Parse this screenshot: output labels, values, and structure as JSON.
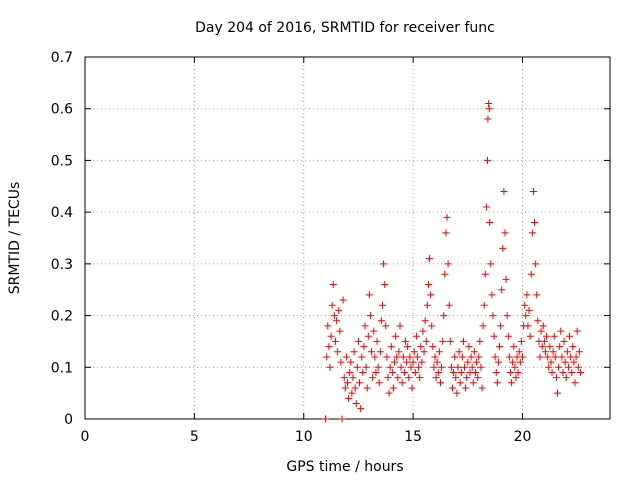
{
  "chart_data": {
    "type": "scatter",
    "title": "Day 204 of 2016, SRMTID for receiver func",
    "xlabel": "GPS time / hours",
    "ylabel": "SRMTID / TECUs",
    "xlim": [
      0,
      24
    ],
    "ylim": [
      0,
      0.7
    ],
    "xticks": [
      0,
      5,
      10,
      15,
      20
    ],
    "xtick_labels": [
      "0",
      "5",
      "10",
      "15",
      "20"
    ],
    "yticks": [
      0,
      0.1,
      0.2,
      0.3,
      0.4,
      0.5,
      0.6,
      0.7
    ],
    "ytick_labels": [
      "0",
      "0.1",
      "0.2",
      "0.3",
      "0.4",
      "0.5",
      "0.6",
      "0.7"
    ],
    "grid": true,
    "marker": "+",
    "color": "#ff0000",
    "series": [
      {
        "name": "SRMTID",
        "points": [
          [
            11.0,
            0.0
          ],
          [
            11.0,
            0.0
          ],
          [
            11.05,
            0.12
          ],
          [
            11.1,
            0.18
          ],
          [
            11.15,
            0.14
          ],
          [
            11.2,
            0.1
          ],
          [
            11.25,
            0.16
          ],
          [
            11.3,
            0.22
          ],
          [
            11.35,
            0.26
          ],
          [
            11.4,
            0.2
          ],
          [
            11.45,
            0.15
          ],
          [
            11.5,
            0.19
          ],
          [
            11.55,
            0.13
          ],
          [
            11.6,
            0.21
          ],
          [
            11.65,
            0.17
          ],
          [
            11.7,
            0.11
          ],
          [
            11.75,
            0.0
          ],
          [
            11.8,
            0.23
          ],
          [
            11.85,
            0.08
          ],
          [
            11.9,
            0.06
          ],
          [
            11.95,
            0.12
          ],
          [
            12.0,
            0.07
          ],
          [
            12.05,
            0.04
          ],
          [
            12.1,
            0.09
          ],
          [
            12.15,
            0.11
          ],
          [
            12.2,
            0.05
          ],
          [
            12.25,
            0.08
          ],
          [
            12.3,
            0.13
          ],
          [
            12.35,
            0.06
          ],
          [
            12.4,
            0.03
          ],
          [
            12.45,
            0.1
          ],
          [
            12.5,
            0.15
          ],
          [
            12.55,
            0.07
          ],
          [
            12.6,
            0.02
          ],
          [
            12.65,
            0.12
          ],
          [
            12.7,
            0.09
          ],
          [
            12.75,
            0.14
          ],
          [
            12.8,
            0.18
          ],
          [
            12.85,
            0.1
          ],
          [
            12.9,
            0.06
          ],
          [
            12.95,
            0.16
          ],
          [
            13.0,
            0.24
          ],
          [
            13.05,
            0.2
          ],
          [
            13.1,
            0.13
          ],
          [
            13.15,
            0.08
          ],
          [
            13.2,
            0.17
          ],
          [
            13.25,
            0.12
          ],
          [
            13.3,
            0.09
          ],
          [
            13.35,
            0.15
          ],
          [
            13.4,
            0.1
          ],
          [
            13.45,
            0.07
          ],
          [
            13.5,
            0.13
          ],
          [
            13.55,
            0.19
          ],
          [
            13.6,
            0.22
          ],
          [
            13.65,
            0.3
          ],
          [
            13.7,
            0.26
          ],
          [
            13.75,
            0.18
          ],
          [
            13.8,
            0.12
          ],
          [
            13.85,
            0.08
          ],
          [
            13.9,
            0.05
          ],
          [
            13.95,
            0.1
          ],
          [
            14.0,
            0.14
          ],
          [
            14.05,
            0.09
          ],
          [
            14.1,
            0.06
          ],
          [
            14.15,
            0.11
          ],
          [
            14.2,
            0.16
          ],
          [
            14.25,
            0.12
          ],
          [
            14.3,
            0.08
          ],
          [
            14.35,
            0.13
          ],
          [
            14.4,
            0.18
          ],
          [
            14.45,
            0.1
          ],
          [
            14.5,
            0.07
          ],
          [
            14.55,
            0.12
          ],
          [
            14.6,
            0.09
          ],
          [
            14.65,
            0.15
          ],
          [
            14.7,
            0.11
          ],
          [
            14.75,
            0.14
          ],
          [
            14.8,
            0.08
          ],
          [
            14.85,
            0.12
          ],
          [
            14.9,
            0.1
          ],
          [
            14.95,
            0.06
          ],
          [
            15.0,
            0.11
          ],
          [
            15.05,
            0.13
          ],
          [
            15.1,
            0.09
          ],
          [
            15.15,
            0.16
          ],
          [
            15.2,
            0.12
          ],
          [
            15.25,
            0.1
          ],
          [
            15.3,
            0.08
          ],
          [
            15.35,
            0.14
          ],
          [
            15.4,
            0.11
          ],
          [
            15.45,
            0.17
          ],
          [
            15.5,
            0.13
          ],
          [
            15.55,
            0.19
          ],
          [
            15.6,
            0.15
          ],
          [
            15.65,
            0.22
          ],
          [
            15.7,
            0.26
          ],
          [
            15.75,
            0.31
          ],
          [
            15.8,
            0.24
          ],
          [
            15.85,
            0.18
          ],
          [
            15.9,
            0.14
          ],
          [
            15.95,
            0.1
          ],
          [
            16.0,
            0.12
          ],
          [
            16.05,
            0.08
          ],
          [
            16.1,
            0.11
          ],
          [
            16.15,
            0.09
          ],
          [
            16.2,
            0.13
          ],
          [
            16.25,
            0.07
          ],
          [
            16.3,
            0.1
          ],
          [
            16.35,
            0.15
          ],
          [
            16.4,
            0.2
          ],
          [
            16.45,
            0.28
          ],
          [
            16.5,
            0.36
          ],
          [
            16.55,
            0.39
          ],
          [
            16.6,
            0.3
          ],
          [
            16.65,
            0.22
          ],
          [
            16.7,
            0.15
          ],
          [
            16.75,
            0.1
          ],
          [
            16.8,
            0.06
          ],
          [
            16.85,
            0.09
          ],
          [
            16.9,
            0.12
          ],
          [
            16.95,
            0.08
          ],
          [
            17.0,
            0.05
          ],
          [
            17.05,
            0.1
          ],
          [
            17.1,
            0.13
          ],
          [
            17.15,
            0.07
          ],
          [
            17.2,
            0.09
          ],
          [
            17.25,
            0.12
          ],
          [
            17.3,
            0.15
          ],
          [
            17.35,
            0.1
          ],
          [
            17.4,
            0.06
          ],
          [
            17.45,
            0.08
          ],
          [
            17.5,
            0.11
          ],
          [
            17.55,
            0.14
          ],
          [
            17.6,
            0.09
          ],
          [
            17.65,
            0.12
          ],
          [
            17.7,
            0.1
          ],
          [
            17.75,
            0.07
          ],
          [
            17.8,
            0.13
          ],
          [
            17.85,
            0.09
          ],
          [
            17.9,
            0.11
          ],
          [
            17.95,
            0.08
          ],
          [
            18.0,
            0.12
          ],
          [
            18.05,
            0.15
          ],
          [
            18.1,
            0.1
          ],
          [
            18.15,
            0.06
          ],
          [
            18.2,
            0.18
          ],
          [
            18.25,
            0.22
          ],
          [
            18.3,
            0.28
          ],
          [
            18.35,
            0.41
          ],
          [
            18.4,
            0.5
          ],
          [
            18.42,
            0.58
          ],
          [
            18.45,
            0.61
          ],
          [
            18.48,
            0.6
          ],
          [
            18.5,
            0.38
          ],
          [
            18.55,
            0.3
          ],
          [
            18.6,
            0.24
          ],
          [
            18.65,
            0.2
          ],
          [
            18.7,
            0.16
          ],
          [
            18.75,
            0.12
          ],
          [
            18.8,
            0.09
          ],
          [
            18.85,
            0.07
          ],
          [
            18.9,
            0.11
          ],
          [
            18.95,
            0.14
          ],
          [
            19.0,
            0.18
          ],
          [
            19.05,
            0.25
          ],
          [
            19.1,
            0.33
          ],
          [
            19.15,
            0.44
          ],
          [
            19.2,
            0.36
          ],
          [
            19.25,
            0.27
          ],
          [
            19.3,
            0.2
          ],
          [
            19.35,
            0.16
          ],
          [
            19.4,
            0.12
          ],
          [
            19.45,
            0.09
          ],
          [
            19.5,
            0.07
          ],
          [
            19.55,
            0.11
          ],
          [
            19.6,
            0.14
          ],
          [
            19.65,
            0.1
          ],
          [
            19.7,
            0.08
          ],
          [
            19.75,
            0.12
          ],
          [
            19.8,
            0.09
          ],
          [
            19.85,
            0.13
          ],
          [
            19.9,
            0.11
          ],
          [
            19.95,
            0.15
          ],
          [
            20.0,
            0.12
          ],
          [
            20.05,
            0.18
          ],
          [
            20.1,
            0.22
          ],
          [
            20.15,
            0.2
          ],
          [
            20.2,
            0.24
          ],
          [
            20.25,
            0.18
          ],
          [
            20.3,
            0.21
          ],
          [
            20.35,
            0.16
          ],
          [
            20.4,
            0.28
          ],
          [
            20.45,
            0.36
          ],
          [
            20.5,
            0.44
          ],
          [
            20.55,
            0.38
          ],
          [
            20.6,
            0.3
          ],
          [
            20.65,
            0.24
          ],
          [
            20.7,
            0.19
          ],
          [
            20.75,
            0.15
          ],
          [
            20.8,
            0.12
          ],
          [
            20.85,
            0.17
          ],
          [
            20.9,
            0.14
          ],
          [
            20.95,
            0.18
          ],
          [
            21.0,
            0.15
          ],
          [
            21.05,
            0.13
          ],
          [
            21.1,
            0.16
          ],
          [
            21.15,
            0.12
          ],
          [
            21.2,
            0.1
          ],
          [
            21.25,
            0.14
          ],
          [
            21.3,
            0.11
          ],
          [
            21.35,
            0.09
          ],
          [
            21.4,
            0.13
          ],
          [
            21.45,
            0.16
          ],
          [
            21.5,
            0.12
          ],
          [
            21.55,
            0.08
          ],
          [
            21.6,
            0.05
          ],
          [
            21.65,
            0.1
          ],
          [
            21.7,
            0.14
          ],
          [
            21.75,
            0.17
          ],
          [
            21.8,
            0.12
          ],
          [
            21.85,
            0.09
          ],
          [
            21.9,
            0.15
          ],
          [
            21.95,
            0.11
          ],
          [
            22.0,
            0.08
          ],
          [
            22.05,
            0.13
          ],
          [
            22.1,
            0.1
          ],
          [
            22.15,
            0.16
          ],
          [
            22.2,
            0.12
          ],
          [
            22.25,
            0.09
          ],
          [
            22.3,
            0.14
          ],
          [
            22.35,
            0.11
          ],
          [
            22.4,
            0.07
          ],
          [
            22.45,
            0.12
          ],
          [
            22.5,
            0.17
          ],
          [
            22.55,
            0.1
          ],
          [
            22.6,
            0.13
          ],
          [
            22.65,
            0.09
          ]
        ]
      }
    ]
  }
}
